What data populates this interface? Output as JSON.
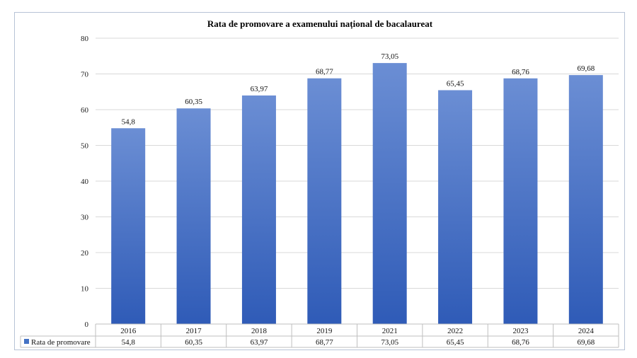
{
  "chart_data": {
    "type": "bar",
    "title": "Rata de promovare a examenului național de bacalaureat",
    "categories": [
      "2016",
      "2017",
      "2018",
      "2019",
      "2021",
      "2022",
      "2023",
      "2024"
    ],
    "series": [
      {
        "name": "Rata de promovare",
        "values": [
          54.8,
          60.35,
          63.97,
          68.77,
          73.05,
          65.45,
          68.76,
          69.68
        ],
        "labels": [
          "54,8",
          "60,35",
          "63,97",
          "68,77",
          "73,05",
          "65,45",
          "68,76",
          "69,68"
        ]
      }
    ],
    "ylim": [
      0,
      80
    ],
    "yticks": [
      "0",
      "10",
      "20",
      "30",
      "40",
      "50",
      "60",
      "70",
      "80"
    ],
    "grid": true,
    "legend": "data-table-left",
    "data_table": true,
    "colors": {
      "bar_top": "#6b8ed4",
      "bar_bottom": "#2f5bb7",
      "legend_key": "#4472c4",
      "grid": "#d9d9d9",
      "table_border": "#bfbfbf"
    }
  }
}
